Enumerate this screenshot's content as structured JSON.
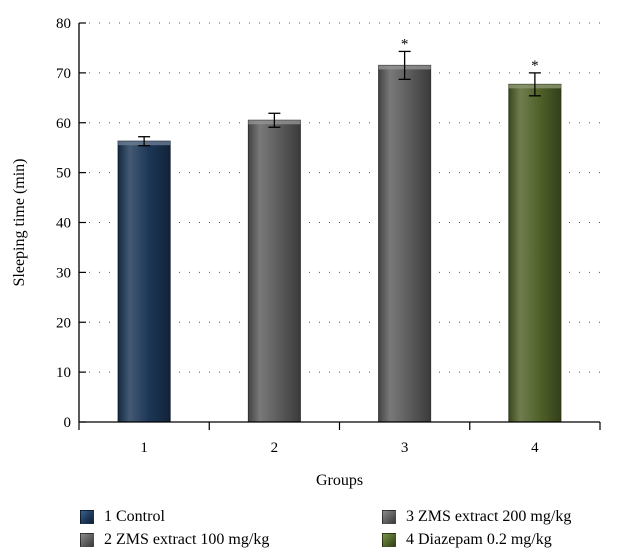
{
  "chart_data": {
    "type": "bar",
    "categories": [
      "1",
      "2",
      "3",
      "4"
    ],
    "values": [
      56.3,
      60.5,
      71.5,
      67.7
    ],
    "errors": [
      0.9,
      1.4,
      2.8,
      2.3
    ],
    "significance": [
      "",
      "",
      "*",
      "*"
    ],
    "colors": [
      "#1b3656",
      "#5b5b5b",
      "#5b5b5b",
      "#4f6128"
    ],
    "title": "",
    "xlabel": "Groups",
    "ylabel": "Sleeping time (min)",
    "ylim": [
      0,
      80
    ],
    "yticks": [
      0,
      10,
      20,
      30,
      40,
      50,
      60,
      70,
      80
    ],
    "grid": "horizontal dotted",
    "legend_position": "bottom",
    "legend": [
      {
        "label": "1 Control",
        "color": "#1b3656"
      },
      {
        "label": "2 ZMS extract 100 mg/kg",
        "color": "#5b5b5b"
      },
      {
        "label": "3 ZMS extract 200 mg/kg",
        "color": "#5b5b5b"
      },
      {
        "label": "4 Diazepam 0.2 mg/kg",
        "color": "#4f6128"
      }
    ]
  }
}
